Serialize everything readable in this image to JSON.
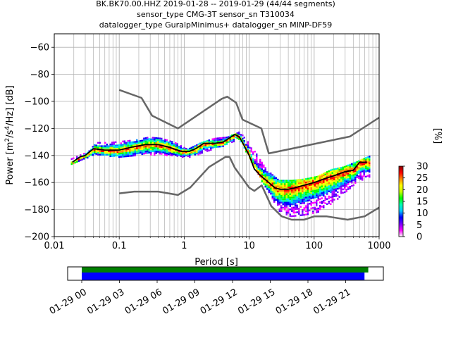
{
  "title_lines": [
    "BK.BK70.00.HHZ   2019-01-28 -- 2019-01-29  (44/44 segments)",
    "sensor_type CMG-3T sensor_sn T310034",
    "datalogger_type GuralpMinimus+ datalogger_sn MINP-DF59"
  ],
  "colorbar": {
    "label": "[%]",
    "ticks": [
      "0",
      "5",
      "10",
      "15",
      "20",
      "25",
      "30"
    ],
    "range": [
      0,
      30
    ],
    "colors": [
      "#ffffff",
      "#ff00ff",
      "#7700ff",
      "#0000ff",
      "#00c8ff",
      "#00ffb0",
      "#00ff00",
      "#c8ff00",
      "#ffff00",
      "#ff8800",
      "#ff0000",
      "#880000"
    ]
  },
  "chart_data": [
    {
      "type": "line",
      "title": "BK.BK70.00.HHZ   2019-01-28 -- 2019-01-29  (44/44 segments)",
      "xlabel": "Period [s]",
      "ylabel": "Power [m²/s⁴/Hz] [dB]",
      "xscale": "log",
      "xlim": [
        0.01,
        1000
      ],
      "ylim": [
        -200,
        -50
      ],
      "grid": true,
      "xticks": [
        0.01,
        0.1,
        1,
        10,
        100,
        1000
      ],
      "xtick_labels": [
        "0.01",
        "0.1",
        "1",
        "10",
        "100",
        "1000"
      ],
      "yticks": [
        -200,
        -180,
        -160,
        -140,
        -120,
        -100,
        -80,
        -60
      ],
      "ytick_labels": [
        "−200",
        "−180",
        "−160",
        "−140",
        "−120",
        "−100",
        "−80",
        "−60"
      ],
      "colors": {
        "noise_models": "#666666",
        "mode": "#000000"
      },
      "series": [
        {
          "role": "new-high-noise-model",
          "x": [
            0.1,
            0.22,
            0.32,
            0.8,
            3.8,
            4.6,
            6.3,
            7.9,
            15.4,
            20,
            354.8,
            1000
          ],
          "y": [
            -91.5,
            -97.4,
            -110.5,
            -120,
            -98,
            -96.5,
            -101,
            -113.5,
            -120,
            -138.5,
            -126,
            -112
          ]
        },
        {
          "role": "new-low-noise-model",
          "x": [
            0.1,
            0.17,
            0.4,
            0.8,
            1.24,
            2.4,
            4.3,
            5,
            6,
            10,
            12,
            15.6,
            21.9,
            31.6,
            45,
            70,
            101,
            154,
            328,
            600,
            1000
          ],
          "y": [
            -168,
            -166.7,
            -166.7,
            -169.2,
            -163.7,
            -148.6,
            -141.1,
            -141.1,
            -149,
            -163.8,
            -166.2,
            -162.1,
            -177.5,
            -185,
            -187.5,
            -187.5,
            -185,
            -185,
            -187.5,
            -185,
            -178.5
          ]
        },
        {
          "role": "mode",
          "x": [
            0.019,
            0.025,
            0.03,
            0.04,
            0.06,
            0.1,
            0.15,
            0.25,
            0.4,
            0.6,
            0.9,
            1.2,
            1.5,
            2,
            3,
            4,
            5,
            6,
            7,
            8,
            10,
            12,
            15,
            20,
            25,
            30,
            40,
            50,
            70,
            100,
            150,
            200,
            300,
            400,
            500,
            650
          ],
          "y": [
            -145,
            -141,
            -140,
            -135,
            -136,
            -136,
            -134,
            -132,
            -132,
            -134,
            -137,
            -137,
            -135,
            -131,
            -131,
            -130,
            -127,
            -124.5,
            -126,
            -131,
            -140,
            -150,
            -155,
            -160,
            -164,
            -165,
            -165,
            -164,
            -162,
            -160,
            -157,
            -155,
            -152,
            -151,
            -145,
            -145
          ]
        }
      ],
      "density_x": [
        0.018,
        0.028,
        0.045,
        0.07,
        0.11,
        0.18,
        0.28,
        0.45,
        0.7,
        1.1,
        1.8,
        2.8,
        4.5,
        7,
        11,
        18,
        28,
        45,
        70,
        110,
        180,
        280,
        450,
        700
      ],
      "density_y_min": [
        -146,
        -142,
        -139,
        -140,
        -141,
        -140,
        -139,
        -139,
        -140,
        -141,
        -139,
        -134,
        -132,
        -128,
        -146,
        -165,
        -182,
        -185,
        -184,
        -182,
        -175,
        -168,
        -160,
        -155
      ],
      "density_y_max": [
        -142,
        -138,
        -130,
        -130,
        -129,
        -128,
        -126,
        -127,
        -130,
        -135,
        -130,
        -127,
        -126,
        -122,
        -134,
        -150,
        -158,
        -158,
        -157,
        -155,
        -150,
        -148,
        -144,
        -140
      ]
    },
    {
      "type": "bar",
      "role": "data-coverage",
      "xaxis": "time",
      "x_range": [
        "2019-01-28 23:00",
        "2019-01-29 23:59"
      ],
      "xtick_labels": [
        "01-29 00",
        "01-29 03",
        "01-29 06",
        "01-29 09",
        "01-29 12",
        "01-29 15",
        "01-29 18",
        "01-29 21"
      ],
      "series": [
        {
          "role": "data-available",
          "color": "#008000",
          "start": "01-29 00",
          "end": "01-29 22:48"
        },
        {
          "role": "psd-segments-used",
          "color": "#0000ff",
          "start": "01-29 00",
          "end": "01-29 22:30"
        }
      ]
    }
  ]
}
